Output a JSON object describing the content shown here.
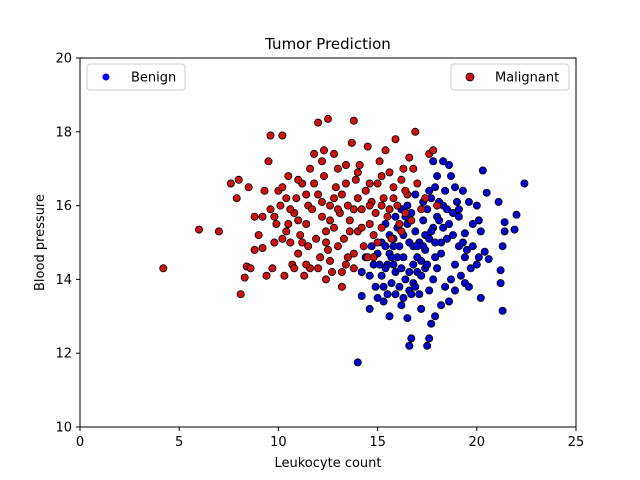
{
  "chart_data": {
    "type": "scatter",
    "title": "Tumor Prediction",
    "xlabel": "Leukocyte count",
    "ylabel": "Blood pressure",
    "xlim": [
      0,
      25
    ],
    "ylim": [
      10,
      20
    ],
    "xticks": [
      "0",
      "5",
      "10",
      "15",
      "20",
      "25"
    ],
    "yticks": [
      "10",
      "12",
      "14",
      "16",
      "18",
      "20"
    ],
    "grid": false,
    "series": [
      {
        "name": "Benign",
        "color": "#0000cc",
        "legend_color": "#0000ff",
        "legend_placement": "top-left",
        "points": [
          [
            14.0,
            11.75
          ],
          [
            14.2,
            13.55
          ],
          [
            14.6,
            13.2
          ],
          [
            15.0,
            13.5
          ],
          [
            15.3,
            13.4
          ],
          [
            15.6,
            13.0
          ],
          [
            15.9,
            13.6
          ],
          [
            16.2,
            13.3
          ],
          [
            16.5,
            12.95
          ],
          [
            16.6,
            12.2
          ],
          [
            16.7,
            12.4
          ],
          [
            17.2,
            13.2
          ],
          [
            17.5,
            12.2
          ],
          [
            17.6,
            12.4
          ],
          [
            17.7,
            12.8
          ],
          [
            17.9,
            13.0
          ],
          [
            18.2,
            13.3
          ],
          [
            18.6,
            13.4
          ],
          [
            18.9,
            13.7
          ],
          [
            19.4,
            13.9
          ],
          [
            19.6,
            13.8
          ],
          [
            20.2,
            13.5
          ],
          [
            21.3,
            13.15
          ],
          [
            21.2,
            13.9
          ],
          [
            21.2,
            14.25
          ],
          [
            21.3,
            14.9
          ],
          [
            21.4,
            15.3
          ],
          [
            21.4,
            15.55
          ],
          [
            21.9,
            15.35
          ],
          [
            22.0,
            15.75
          ],
          [
            22.4,
            16.6
          ],
          [
            21.1,
            16.1
          ],
          [
            20.3,
            16.95
          ],
          [
            20.5,
            16.35
          ],
          [
            20.0,
            16.0
          ],
          [
            20.1,
            15.6
          ],
          [
            20.2,
            15.3
          ],
          [
            20.4,
            14.75
          ],
          [
            20.6,
            14.55
          ],
          [
            20.0,
            14.4
          ],
          [
            19.7,
            14.3
          ],
          [
            19.4,
            14.6
          ],
          [
            19.1,
            14.9
          ],
          [
            18.8,
            15.2
          ],
          [
            18.6,
            15.5
          ],
          [
            18.8,
            15.8
          ],
          [
            19.0,
            16.1
          ],
          [
            19.3,
            16.4
          ],
          [
            19.6,
            16.1
          ],
          [
            19.8,
            15.5
          ],
          [
            19.4,
            15.25
          ],
          [
            19.1,
            15.7
          ],
          [
            18.9,
            16.5
          ],
          [
            18.7,
            16.8
          ],
          [
            18.4,
            16.4
          ],
          [
            18.3,
            16.0
          ],
          [
            18.0,
            15.7
          ],
          [
            17.8,
            15.4
          ],
          [
            17.6,
            15.1
          ],
          [
            17.4,
            14.8
          ],
          [
            17.2,
            14.5
          ],
          [
            17.0,
            14.2
          ],
          [
            16.8,
            13.9
          ],
          [
            16.6,
            13.7
          ],
          [
            16.4,
            14.0
          ],
          [
            16.2,
            14.3
          ],
          [
            16.0,
            14.6
          ],
          [
            15.8,
            14.9
          ],
          [
            15.6,
            15.2
          ],
          [
            15.4,
            15.5
          ],
          [
            15.2,
            15.0
          ],
          [
            15.0,
            14.7
          ],
          [
            14.8,
            14.4
          ],
          [
            14.6,
            14.1
          ],
          [
            14.4,
            14.6
          ],
          [
            14.2,
            14.2
          ],
          [
            14.9,
            13.8
          ],
          [
            15.2,
            14.1
          ],
          [
            15.5,
            14.4
          ],
          [
            15.7,
            13.9
          ],
          [
            15.9,
            14.2
          ],
          [
            16.1,
            14.9
          ],
          [
            16.3,
            15.2
          ],
          [
            16.5,
            15.5
          ],
          [
            16.7,
            15.8
          ],
          [
            16.9,
            15.3
          ],
          [
            17.1,
            15.0
          ],
          [
            17.3,
            15.6
          ],
          [
            17.5,
            15.9
          ],
          [
            17.7,
            16.2
          ],
          [
            17.9,
            16.5
          ],
          [
            18.1,
            16.1
          ],
          [
            18.3,
            15.4
          ],
          [
            18.5,
            15.1
          ],
          [
            18.2,
            14.7
          ],
          [
            18.0,
            14.3
          ],
          [
            17.8,
            14.0
          ],
          [
            17.6,
            13.7
          ],
          [
            17.4,
            14.3
          ],
          [
            17.2,
            14.1
          ],
          [
            17.0,
            14.6
          ],
          [
            16.8,
            14.4
          ],
          [
            16.6,
            15.0
          ],
          [
            16.4,
            15.7
          ],
          [
            16.2,
            15.9
          ],
          [
            16.0,
            15.4
          ],
          [
            15.8,
            15.1
          ],
          [
            15.6,
            14.7
          ],
          [
            15.4,
            14.3
          ],
          [
            15.3,
            13.8
          ],
          [
            15.5,
            13.6
          ],
          [
            16.3,
            13.5
          ],
          [
            16.9,
            13.8
          ],
          [
            17.3,
            14.9
          ],
          [
            17.7,
            15.3
          ],
          [
            18.1,
            15.6
          ],
          [
            18.5,
            15.9
          ],
          [
            18.9,
            14.4
          ],
          [
            19.2,
            14.1
          ],
          [
            19.5,
            14.8
          ],
          [
            19.8,
            14.9
          ],
          [
            20.1,
            14.6
          ],
          [
            18.7,
            14.0
          ],
          [
            18.4,
            13.8
          ],
          [
            17.9,
            14.6
          ],
          [
            17.5,
            14.4
          ],
          [
            17.1,
            13.6
          ],
          [
            16.7,
            13.6
          ],
          [
            16.1,
            13.8
          ],
          [
            15.7,
            14.6
          ],
          [
            15.1,
            14.4
          ],
          [
            14.7,
            14.9
          ],
          [
            15.9,
            15.7
          ],
          [
            16.5,
            16.0
          ],
          [
            16.9,
            16.3
          ],
          [
            17.3,
            16.1
          ],
          [
            17.6,
            16.4
          ],
          [
            18.0,
            16.8
          ],
          [
            18.3,
            17.2
          ],
          [
            17.8,
            17.2
          ],
          [
            18.6,
            17.1
          ],
          [
            19.1,
            15.9
          ],
          [
            19.3,
            15.0
          ],
          [
            18.2,
            15.0
          ],
          [
            17.9,
            15.0
          ],
          [
            17.4,
            15.2
          ],
          [
            16.8,
            14.9
          ],
          [
            16.3,
            14.6
          ],
          [
            15.8,
            14.4
          ],
          [
            15.4,
            14.9
          ],
          [
            16.6,
            14.2
          ],
          [
            17.0,
            14.9
          ]
        ]
      },
      {
        "name": "Malignant",
        "color": "#cc1111",
        "legend_color": "#cc1111",
        "legend_placement": "top-right",
        "points": [
          [
            4.2,
            14.3
          ],
          [
            6.0,
            15.35
          ],
          [
            7.0,
            15.3
          ],
          [
            7.6,
            16.6
          ],
          [
            7.9,
            16.2
          ],
          [
            8.0,
            16.7
          ],
          [
            8.1,
            13.6
          ],
          [
            8.3,
            14.05
          ],
          [
            8.4,
            14.35
          ],
          [
            8.5,
            16.5
          ],
          [
            8.6,
            14.3
          ],
          [
            8.8,
            15.7
          ],
          [
            9.0,
            15.2
          ],
          [
            9.2,
            14.85
          ],
          [
            9.3,
            16.4
          ],
          [
            9.5,
            17.2
          ],
          [
            9.6,
            17.9
          ],
          [
            9.4,
            14.1
          ],
          [
            9.7,
            14.3
          ],
          [
            9.8,
            15.0
          ],
          [
            9.9,
            15.5
          ],
          [
            10.0,
            16.4
          ],
          [
            10.1,
            16.0
          ],
          [
            10.2,
            17.9
          ],
          [
            10.2,
            16.5
          ],
          [
            10.3,
            14.1
          ],
          [
            10.4,
            15.3
          ],
          [
            10.5,
            16.8
          ],
          [
            10.6,
            15.0
          ],
          [
            10.7,
            14.4
          ],
          [
            10.8,
            15.8
          ],
          [
            10.9,
            16.2
          ],
          [
            11.0,
            14.7
          ],
          [
            11.1,
            15.2
          ],
          [
            11.2,
            16.6
          ],
          [
            11.3,
            14.1
          ],
          [
            11.4,
            15.5
          ],
          [
            11.5,
            16.0
          ],
          [
            11.6,
            14.3
          ],
          [
            11.7,
            15.9
          ],
          [
            11.8,
            17.4
          ],
          [
            11.9,
            15.1
          ],
          [
            12.0,
            18.25
          ],
          [
            12.0,
            16.3
          ],
          [
            12.1,
            14.6
          ],
          [
            12.2,
            15.7
          ],
          [
            12.3,
            17.5
          ],
          [
            12.3,
            16.8
          ],
          [
            12.4,
            15.0
          ],
          [
            12.5,
            18.35
          ],
          [
            12.6,
            16.0
          ],
          [
            12.7,
            14.2
          ],
          [
            12.8,
            15.4
          ],
          [
            12.9,
            16.5
          ],
          [
            13.0,
            17.0
          ],
          [
            13.0,
            14.9
          ],
          [
            13.1,
            15.8
          ],
          [
            13.2,
            16.3
          ],
          [
            13.3,
            15.1
          ],
          [
            13.4,
            14.4
          ],
          [
            13.5,
            16.0
          ],
          [
            13.6,
            15.6
          ],
          [
            13.7,
            17.7
          ],
          [
            13.8,
            18.3
          ],
          [
            13.8,
            14.7
          ],
          [
            13.9,
            16.7
          ],
          [
            14.0,
            15.3
          ],
          [
            14.1,
            17.1
          ],
          [
            14.2,
            15.9
          ],
          [
            14.3,
            14.9
          ],
          [
            14.4,
            16.4
          ],
          [
            14.5,
            17.6
          ],
          [
            14.6,
            15.5
          ],
          [
            14.7,
            16.1
          ],
          [
            14.8,
            14.6
          ],
          [
            14.9,
            15.8
          ],
          [
            15.0,
            16.6
          ],
          [
            15.1,
            17.2
          ],
          [
            15.2,
            15.4
          ],
          [
            15.3,
            16.2
          ],
          [
            15.4,
            17.5
          ],
          [
            15.5,
            15.7
          ],
          [
            15.6,
            16.9
          ],
          [
            15.7,
            15.1
          ],
          [
            15.8,
            16.5
          ],
          [
            15.9,
            17.8
          ],
          [
            16.0,
            16.0
          ],
          [
            16.1,
            15.5
          ],
          [
            16.2,
            16.7
          ],
          [
            16.3,
            17.0
          ],
          [
            16.4,
            15.8
          ],
          [
            16.5,
            16.3
          ],
          [
            16.6,
            17.3
          ],
          [
            16.7,
            15.6
          ],
          [
            16.8,
            17.0
          ],
          [
            16.9,
            18.0
          ],
          [
            17.0,
            16.6
          ],
          [
            17.2,
            15.9
          ],
          [
            17.4,
            16.2
          ],
          [
            17.6,
            17.4
          ],
          [
            17.8,
            17.5
          ],
          [
            18.0,
            16.0
          ],
          [
            11.0,
            15.6
          ],
          [
            10.5,
            15.5
          ],
          [
            11.5,
            14.9
          ],
          [
            12.5,
            14.8
          ],
          [
            13.5,
            14.6
          ],
          [
            14.5,
            14.6
          ],
          [
            12.2,
            16.1
          ],
          [
            12.8,
            16.2
          ],
          [
            13.4,
            16.6
          ],
          [
            14.0,
            16.2
          ],
          [
            14.6,
            16.0
          ],
          [
            15.2,
            16.0
          ],
          [
            11.8,
            16.6
          ],
          [
            12.4,
            15.3
          ],
          [
            13.0,
            15.9
          ],
          [
            13.6,
            15.3
          ],
          [
            14.2,
            15.4
          ],
          [
            10.8,
            14.3
          ],
          [
            11.4,
            14.4
          ],
          [
            12.0,
            14.3
          ],
          [
            12.6,
            14.5
          ],
          [
            13.2,
            14.2
          ],
          [
            13.8,
            14.3
          ],
          [
            9.8,
            15.7
          ],
          [
            10.4,
            16.2
          ],
          [
            11.0,
            16.7
          ],
          [
            11.6,
            17.0
          ],
          [
            12.2,
            17.2
          ],
          [
            12.8,
            17.4
          ],
          [
            13.4,
            17.1
          ],
          [
            14.0,
            16.9
          ],
          [
            14.6,
            16.6
          ],
          [
            15.2,
            16.8
          ],
          [
            15.8,
            16.2
          ],
          [
            16.4,
            16.4
          ],
          [
            13.2,
            13.8
          ],
          [
            12.4,
            14.0
          ],
          [
            11.2,
            15.0
          ],
          [
            10.2,
            15.1
          ],
          [
            9.2,
            15.7
          ],
          [
            8.8,
            14.8
          ],
          [
            9.6,
            15.9
          ],
          [
            10.6,
            15.9
          ],
          [
            11.4,
            16.3
          ],
          [
            12.6,
            15.6
          ],
          [
            13.8,
            15.9
          ],
          [
            14.8,
            15.2
          ],
          [
            15.6,
            15.9
          ],
          [
            16.2,
            15.3
          ],
          [
            15.0,
            15.0
          ]
        ]
      }
    ]
  }
}
